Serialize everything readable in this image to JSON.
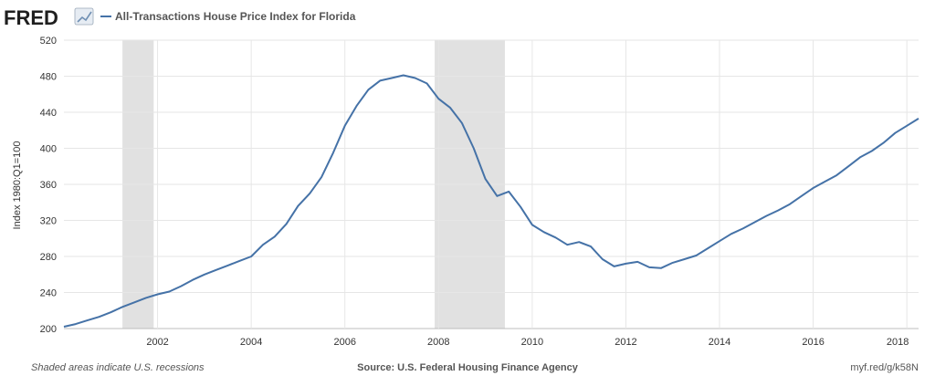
{
  "logo": {
    "text": "FRED"
  },
  "chart_data": {
    "type": "line",
    "title": "All-Transactions House Price Index for Florida",
    "ylabel": "Index 1980:Q1=100",
    "xlabel": "",
    "xlim": [
      2000.0,
      2018.25
    ],
    "ylim": [
      200,
      520
    ],
    "x_ticks": [
      2002,
      2004,
      2006,
      2008,
      2010,
      2012,
      2014,
      2016,
      2018
    ],
    "y_ticks": [
      200,
      240,
      280,
      320,
      360,
      400,
      440,
      480,
      520
    ],
    "grid": true,
    "series": [
      {
        "name": "All-Transactions House Price Index for Florida",
        "color": "#4572a7",
        "x": [
          2000.0,
          2000.25,
          2000.5,
          2000.75,
          2001.0,
          2001.25,
          2001.5,
          2001.75,
          2002.0,
          2002.25,
          2002.5,
          2002.75,
          2003.0,
          2003.25,
          2003.5,
          2003.75,
          2004.0,
          2004.25,
          2004.5,
          2004.75,
          2005.0,
          2005.25,
          2005.5,
          2005.75,
          2006.0,
          2006.25,
          2006.5,
          2006.75,
          2007.0,
          2007.25,
          2007.5,
          2007.75,
          2008.0,
          2008.25,
          2008.5,
          2008.75,
          2009.0,
          2009.25,
          2009.5,
          2009.75,
          2010.0,
          2010.25,
          2010.5,
          2010.75,
          2011.0,
          2011.25,
          2011.5,
          2011.75,
          2012.0,
          2012.25,
          2012.5,
          2012.75,
          2013.0,
          2013.25,
          2013.5,
          2013.75,
          2014.0,
          2014.25,
          2014.5,
          2014.75,
          2015.0,
          2015.25,
          2015.5,
          2015.75,
          2016.0,
          2016.25,
          2016.5,
          2016.75,
          2017.0,
          2017.25,
          2017.5,
          2017.75,
          2018.0,
          2018.25
        ],
        "values": [
          202,
          205,
          209,
          213,
          218,
          224,
          229,
          234,
          238,
          241,
          247,
          254,
          260,
          265,
          270,
          275,
          280,
          293,
          302,
          316,
          336,
          350,
          368,
          395,
          425,
          447,
          465,
          475,
          478,
          481,
          478,
          472,
          455,
          445,
          428,
          400,
          366,
          347,
          352,
          335,
          315,
          307,
          301,
          293,
          296,
          291,
          277,
          269,
          272,
          274,
          268,
          267,
          273,
          277,
          281,
          289,
          297,
          305,
          311,
          318,
          325,
          331,
          338,
          347,
          356,
          363,
          370,
          380,
          390,
          397,
          406,
          417,
          425,
          433
        ]
      }
    ],
    "recessions": [
      [
        2001.25,
        2001.917
      ],
      [
        2007.917,
        2009.417
      ]
    ]
  },
  "footer": {
    "note": "Shaded areas indicate U.S. recessions",
    "source": "Source: U.S. Federal Housing Finance Agency",
    "link": "myf.red/g/k58N"
  }
}
